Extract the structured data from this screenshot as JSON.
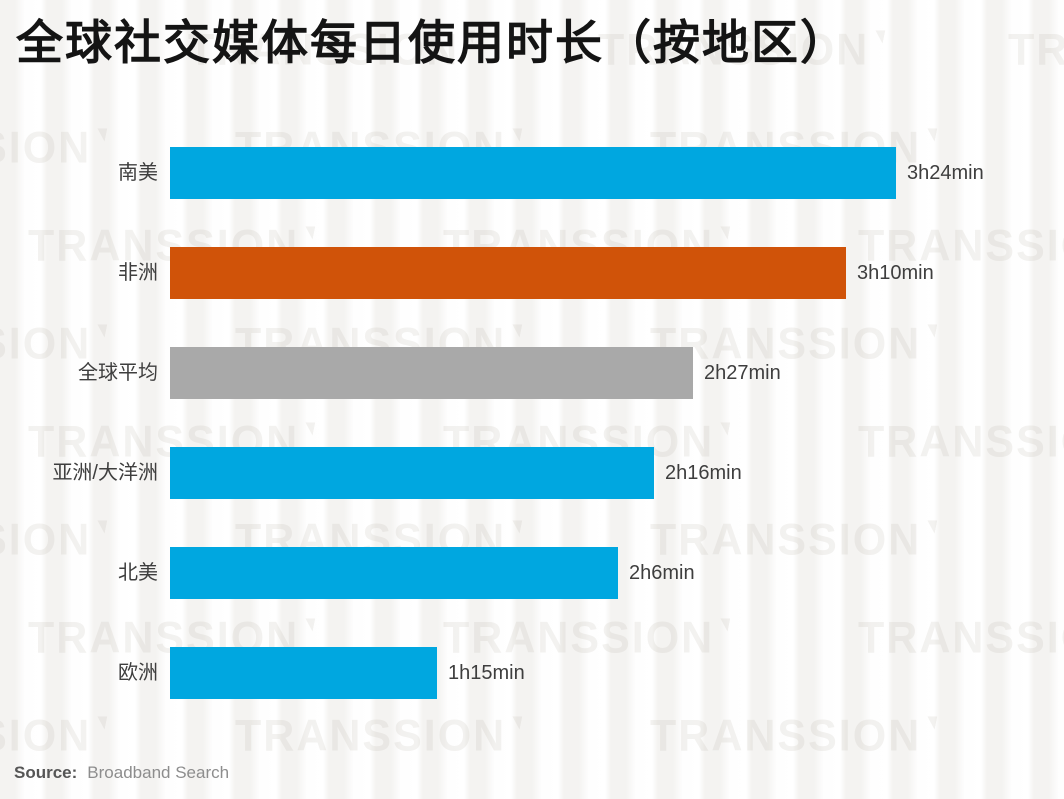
{
  "chart_data": {
    "type": "bar",
    "orientation": "horizontal",
    "title": "全球社交媒体每日使用时长（按地区）",
    "categories": [
      "南美",
      "非洲",
      "全球平均",
      "亚洲/大洋洲",
      "北美",
      "欧洲"
    ],
    "series": [
      {
        "name": "每日使用时长",
        "value_labels": [
          "3h24min",
          "3h10min",
          "2h27min",
          "2h16min",
          "2h6min",
          "1h15min"
        ],
        "values_minutes": [
          204,
          190,
          147,
          136,
          126,
          75
        ]
      }
    ],
    "xlim_minutes": [
      0,
      232
    ],
    "grid": false,
    "legend": "none",
    "bar_colors": [
      "#00A7E0",
      "#D05309",
      "#A9A9A9",
      "#00A7E0",
      "#00A7E0",
      "#00A7E0"
    ],
    "accent_blue": "#00A7E0",
    "accent_orange": "#D05309",
    "accent_gray": "#A9A9A9"
  },
  "source": {
    "label": "Source:",
    "value": "Broadband Search"
  },
  "watermark": {
    "text": "TRANSSION"
  }
}
